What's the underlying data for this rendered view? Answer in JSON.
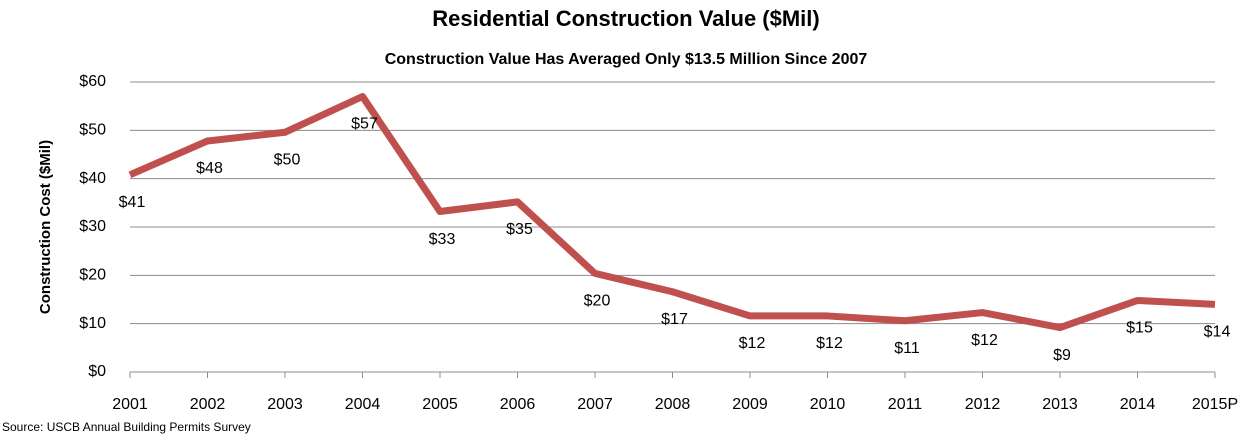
{
  "chart_data": {
    "type": "line",
    "title": "Residential Construction Value ($Mil)",
    "subtitle": "Construction Value Has Averaged Only $13.5 Million Since 2007",
    "y_label": "Construction Cost ($Mil)",
    "source": "Source: USCB Annual Building Permits Survey",
    "categories": [
      "2001",
      "2002",
      "2003",
      "2004",
      "2005",
      "2006",
      "2007",
      "2008",
      "2009",
      "2010",
      "2011",
      "2012",
      "2013",
      "2014",
      "2015P"
    ],
    "series": [
      {
        "name": "Construction Value",
        "color": "#c0504d",
        "values": [
          40.8,
          47.8,
          49.6,
          57,
          33.2,
          35.2,
          20.4,
          16.6,
          11.6,
          11.6,
          10.6,
          12.3,
          9.2,
          14.8,
          14.0
        ],
        "value_labels": [
          "$41",
          "$48",
          "$50",
          "$57",
          "$33",
          "$35",
          "$20",
          "$17",
          "$12",
          "$12",
          "$11",
          "$12",
          "$9",
          "$15",
          "$14"
        ]
      }
    ],
    "ylim": [
      0,
      60
    ],
    "yticks": [
      {
        "value": 0,
        "label": "$0"
      },
      {
        "value": 10,
        "label": "$10"
      },
      {
        "value": 20,
        "label": "$20"
      },
      {
        "value": 30,
        "label": "$30"
      },
      {
        "value": 40,
        "label": "$40"
      },
      {
        "value": 50,
        "label": "$50"
      },
      {
        "value": 60,
        "label": "$60"
      }
    ],
    "grid": true
  }
}
